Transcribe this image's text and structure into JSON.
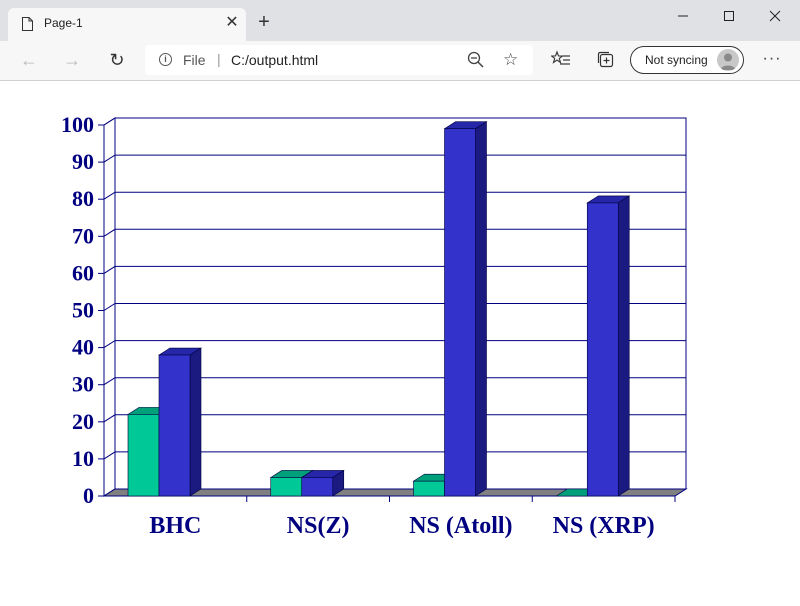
{
  "browser": {
    "tab_title": "Page-1",
    "address_scheme": "File",
    "address_url": "C:/output.html",
    "sync_label": "Not syncing"
  },
  "colors": {
    "series_a": "#00c896",
    "series_b": "#3333cc",
    "axis": "#000080",
    "floor": "#808080"
  },
  "chart_data": {
    "type": "bar",
    "categories": [
      "BHC",
      "NS(Z)",
      "NS (Atoll)",
      "NS (XRP)"
    ],
    "series": [
      {
        "values": [
          22,
          5,
          4,
          0
        ]
      },
      {
        "values": [
          38,
          5,
          99,
          79
        ]
      }
    ],
    "ylim": [
      0,
      100
    ],
    "yticks": [
      "0",
      "10",
      "20",
      "30",
      "40",
      "50",
      "60",
      "70",
      "80",
      "90",
      "100"
    ],
    "grid": true,
    "legend": "none"
  }
}
